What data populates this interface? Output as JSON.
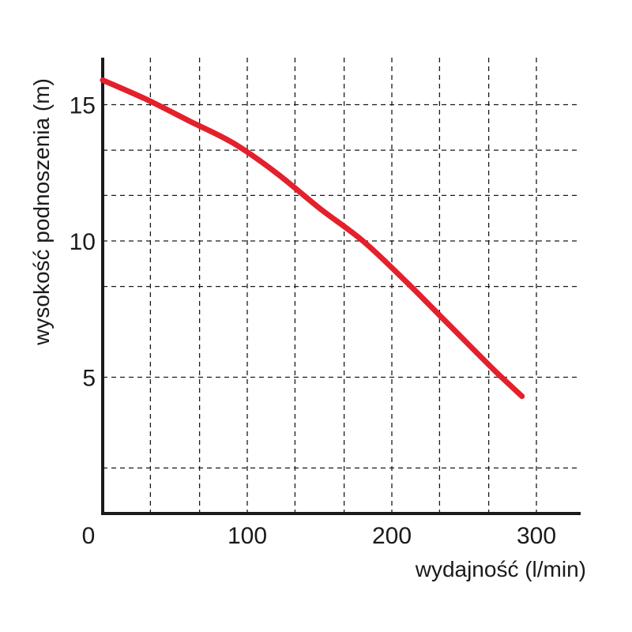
{
  "chart_data": {
    "type": "line",
    "xlabel": "wydajność (l/min)",
    "ylabel": "wysokość podnoszenia (m)",
    "xlim": [
      0,
      330
    ],
    "ylim": [
      0,
      17.5
    ],
    "x_ticks": [
      0,
      100,
      200,
      300
    ],
    "x_tick_labels": [
      "0",
      "100",
      "200",
      "300"
    ],
    "y_ticks": [
      5,
      10,
      15
    ],
    "y_tick_labels": [
      "5",
      "10",
      "15"
    ],
    "x_grid": [
      33,
      67,
      100,
      133,
      167,
      200,
      233,
      267,
      300
    ],
    "y_grid": [
      1.67,
      5,
      8.33,
      10,
      11.67,
      13.33,
      15
    ],
    "grid": true,
    "series": [
      {
        "color": "#e3202b",
        "x": [
          0,
          30,
          60,
          90,
          120,
          150,
          180,
          210,
          240,
          270,
          290
        ],
        "y": [
          15.9,
          15.2,
          14.4,
          13.6,
          12.5,
          11.2,
          10.0,
          8.5,
          6.9,
          5.3,
          4.3
        ]
      }
    ]
  }
}
